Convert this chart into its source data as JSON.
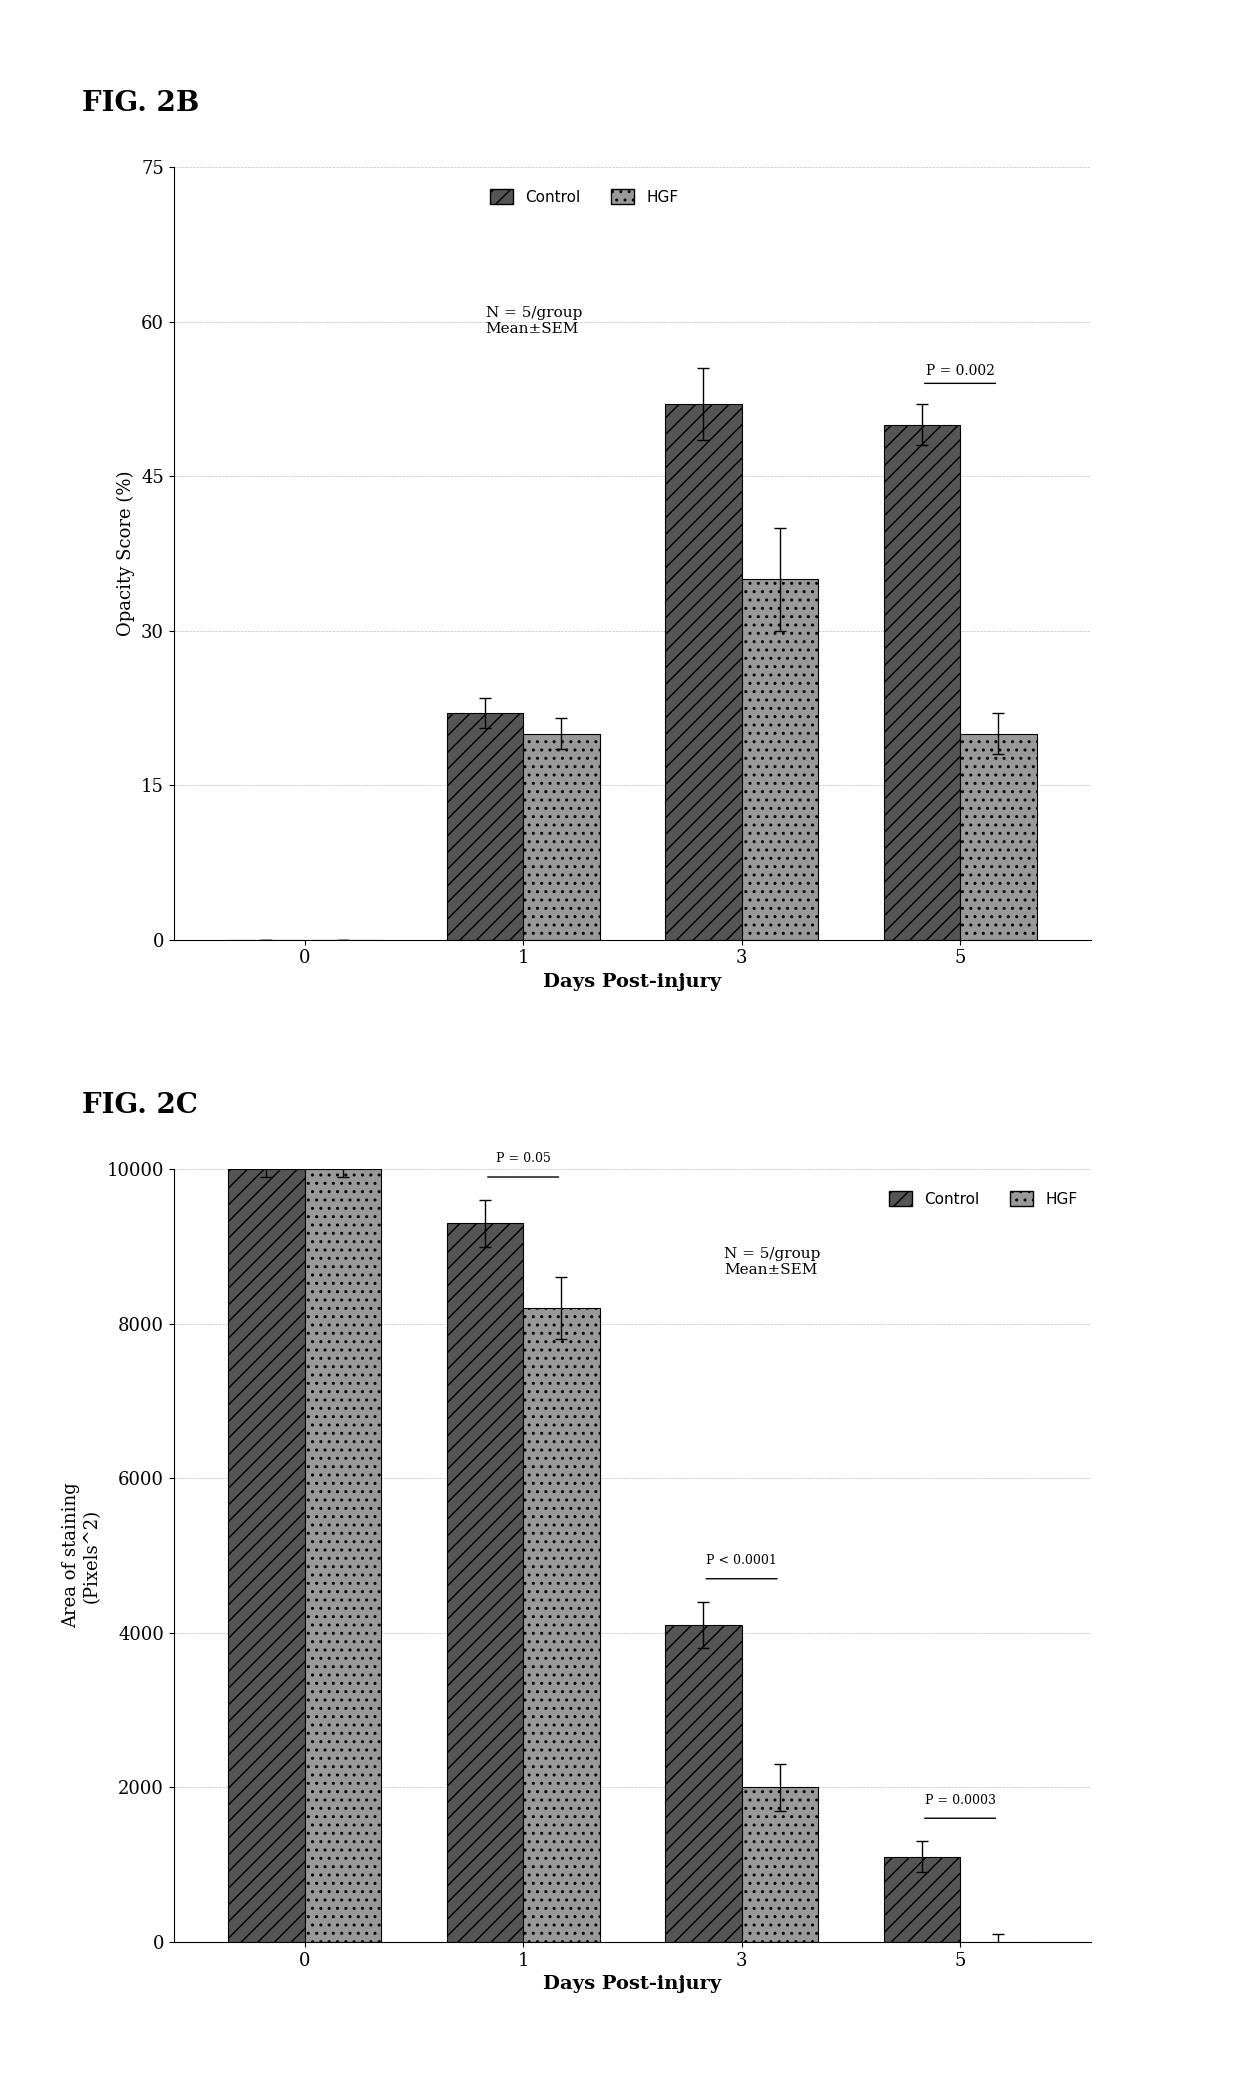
{
  "fig2b": {
    "title": "FIG. 2B",
    "xlabel": "Days Post-injury",
    "ylabel": "Opacity Score (%)",
    "ylim": [
      0,
      75
    ],
    "yticks": [
      0,
      15,
      30,
      45,
      60,
      75
    ],
    "days": [
      0,
      1,
      3,
      5
    ],
    "control_values": [
      0,
      22,
      52,
      50
    ],
    "hgf_values": [
      0,
      20,
      35,
      20
    ],
    "control_err": [
      0,
      1.5,
      3.5,
      2.0
    ],
    "hgf_err": [
      0,
      1.5,
      5.0,
      2.0
    ],
    "legend_note": "N = 5/group\nMean±SEM",
    "pvalue_text": "P = 0.002",
    "pvalue_idx": 3
  },
  "fig2c": {
    "title": "FIG. 2C",
    "xlabel": "Days Post-injury",
    "ylabel": "Area of staining\n(Pixels^2)",
    "ylim": [
      0,
      10000
    ],
    "yticks": [
      0,
      2000,
      4000,
      6000,
      8000,
      10000
    ],
    "days": [
      0,
      1,
      3,
      5
    ],
    "control_values": [
      10000,
      9300,
      4100,
      1100
    ],
    "hgf_values": [
      10000,
      8200,
      2000,
      0
    ],
    "control_err": [
      100,
      300,
      300,
      200
    ],
    "hgf_err": [
      100,
      400,
      300,
      100
    ],
    "legend_note": "N = 5/group\nMean±SEM",
    "pvalue_texts": [
      "P = 0.05",
      "P < 0.0001",
      "P = 0.0003"
    ],
    "pvalue_indices": [
      1,
      2,
      3
    ]
  },
  "bar_width": 0.35,
  "control_color": "#555555",
  "hgf_color": "#999999",
  "control_hatch": "//",
  "hgf_hatch": "..",
  "background_color": "#ffffff",
  "font_family": "serif"
}
